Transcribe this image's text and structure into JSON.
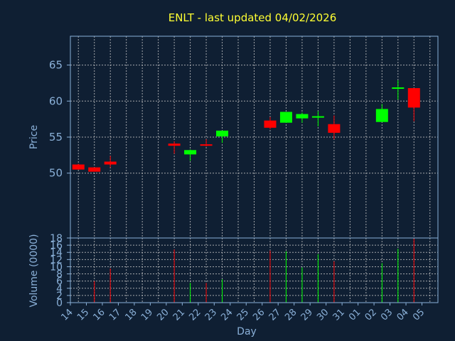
{
  "chart_data": {
    "type": "candlestick",
    "title": "ENLT - last updated 04/02/2026",
    "xlabel": "Day",
    "price_ylabel": "Price",
    "volume_ylabel": "Volume (0000)",
    "price_ylim": [
      41,
      69
    ],
    "price_yticks": [
      50,
      55,
      60,
      65
    ],
    "volume_ylim": [
      0,
      18
    ],
    "volume_yticks": [
      0,
      2,
      4,
      6,
      8,
      10,
      12,
      14,
      16,
      18
    ],
    "grid": true,
    "colors": {
      "up": "#00ff00",
      "down": "#ff0000",
      "grid": "#c8c8c8",
      "axis": "#8ab0d8",
      "title": "#ffff33",
      "background": "#0f1f33"
    },
    "x_ticks": [
      "14",
      "15",
      "16",
      "17",
      "18",
      "19",
      "20",
      "21",
      "22",
      "23",
      "24",
      "25",
      "26",
      "27",
      "28",
      "29",
      "30",
      "31",
      "01",
      "02",
      "03",
      "04",
      "05"
    ],
    "candles": [
      {
        "day": "14",
        "open": 51.2,
        "high": 51.3,
        "low": 50.5,
        "close": 50.5
      },
      {
        "day": "15",
        "open": 50.8,
        "high": 50.8,
        "low": 50.2,
        "close": 50.2
      },
      {
        "day": "16",
        "open": 51.6,
        "high": 52.4,
        "low": 50.8,
        "close": 51.2
      },
      {
        "day": "20",
        "open": 54.1,
        "high": 54.4,
        "low": 52.7,
        "close": 53.8
      },
      {
        "day": "21",
        "open": 52.6,
        "high": 53.3,
        "low": 51.7,
        "close": 53.2
      },
      {
        "day": "22",
        "open": 54.0,
        "high": 54.7,
        "low": 53.7,
        "close": 53.9
      },
      {
        "day": "23",
        "open": 55.1,
        "high": 55.9,
        "low": 54.2,
        "close": 55.9
      },
      {
        "day": "26",
        "open": 57.3,
        "high": 57.8,
        "low": 56.1,
        "close": 56.3
      },
      {
        "day": "27",
        "open": 57.0,
        "high": 58.5,
        "low": 57.0,
        "close": 58.5
      },
      {
        "day": "28",
        "open": 57.6,
        "high": 58.4,
        "low": 57.0,
        "close": 58.2
      },
      {
        "day": "29",
        "open": 57.7,
        "high": 58.6,
        "low": 56.5,
        "close": 57.9
      },
      {
        "day": "30",
        "open": 56.8,
        "high": 58.0,
        "low": 54.7,
        "close": 55.6
      },
      {
        "day": "02",
        "open": 57.1,
        "high": 59.6,
        "low": 57.1,
        "close": 58.9
      },
      {
        "day": "03",
        "open": 61.7,
        "high": 62.9,
        "low": 60.2,
        "close": 61.9
      },
      {
        "day": "04",
        "open": 61.8,
        "high": 61.8,
        "low": 57.2,
        "close": 59.1
      }
    ],
    "volume": [
      {
        "day": "14",
        "value": 0
      },
      {
        "day": "15",
        "value": 6
      },
      {
        "day": "16",
        "value": 9.5
      },
      {
        "day": "20",
        "value": 14.8
      },
      {
        "day": "21",
        "value": 5.5
      },
      {
        "day": "22",
        "value": 5.5
      },
      {
        "day": "23",
        "value": 6.5
      },
      {
        "day": "26",
        "value": 14.5
      },
      {
        "day": "27",
        "value": 14.3
      },
      {
        "day": "28",
        "value": 9.8
      },
      {
        "day": "29",
        "value": 13.5
      },
      {
        "day": "30",
        "value": 11.5
      },
      {
        "day": "02",
        "value": 11
      },
      {
        "day": "03",
        "value": 15
      },
      {
        "day": "04",
        "value": 17.8
      }
    ]
  }
}
